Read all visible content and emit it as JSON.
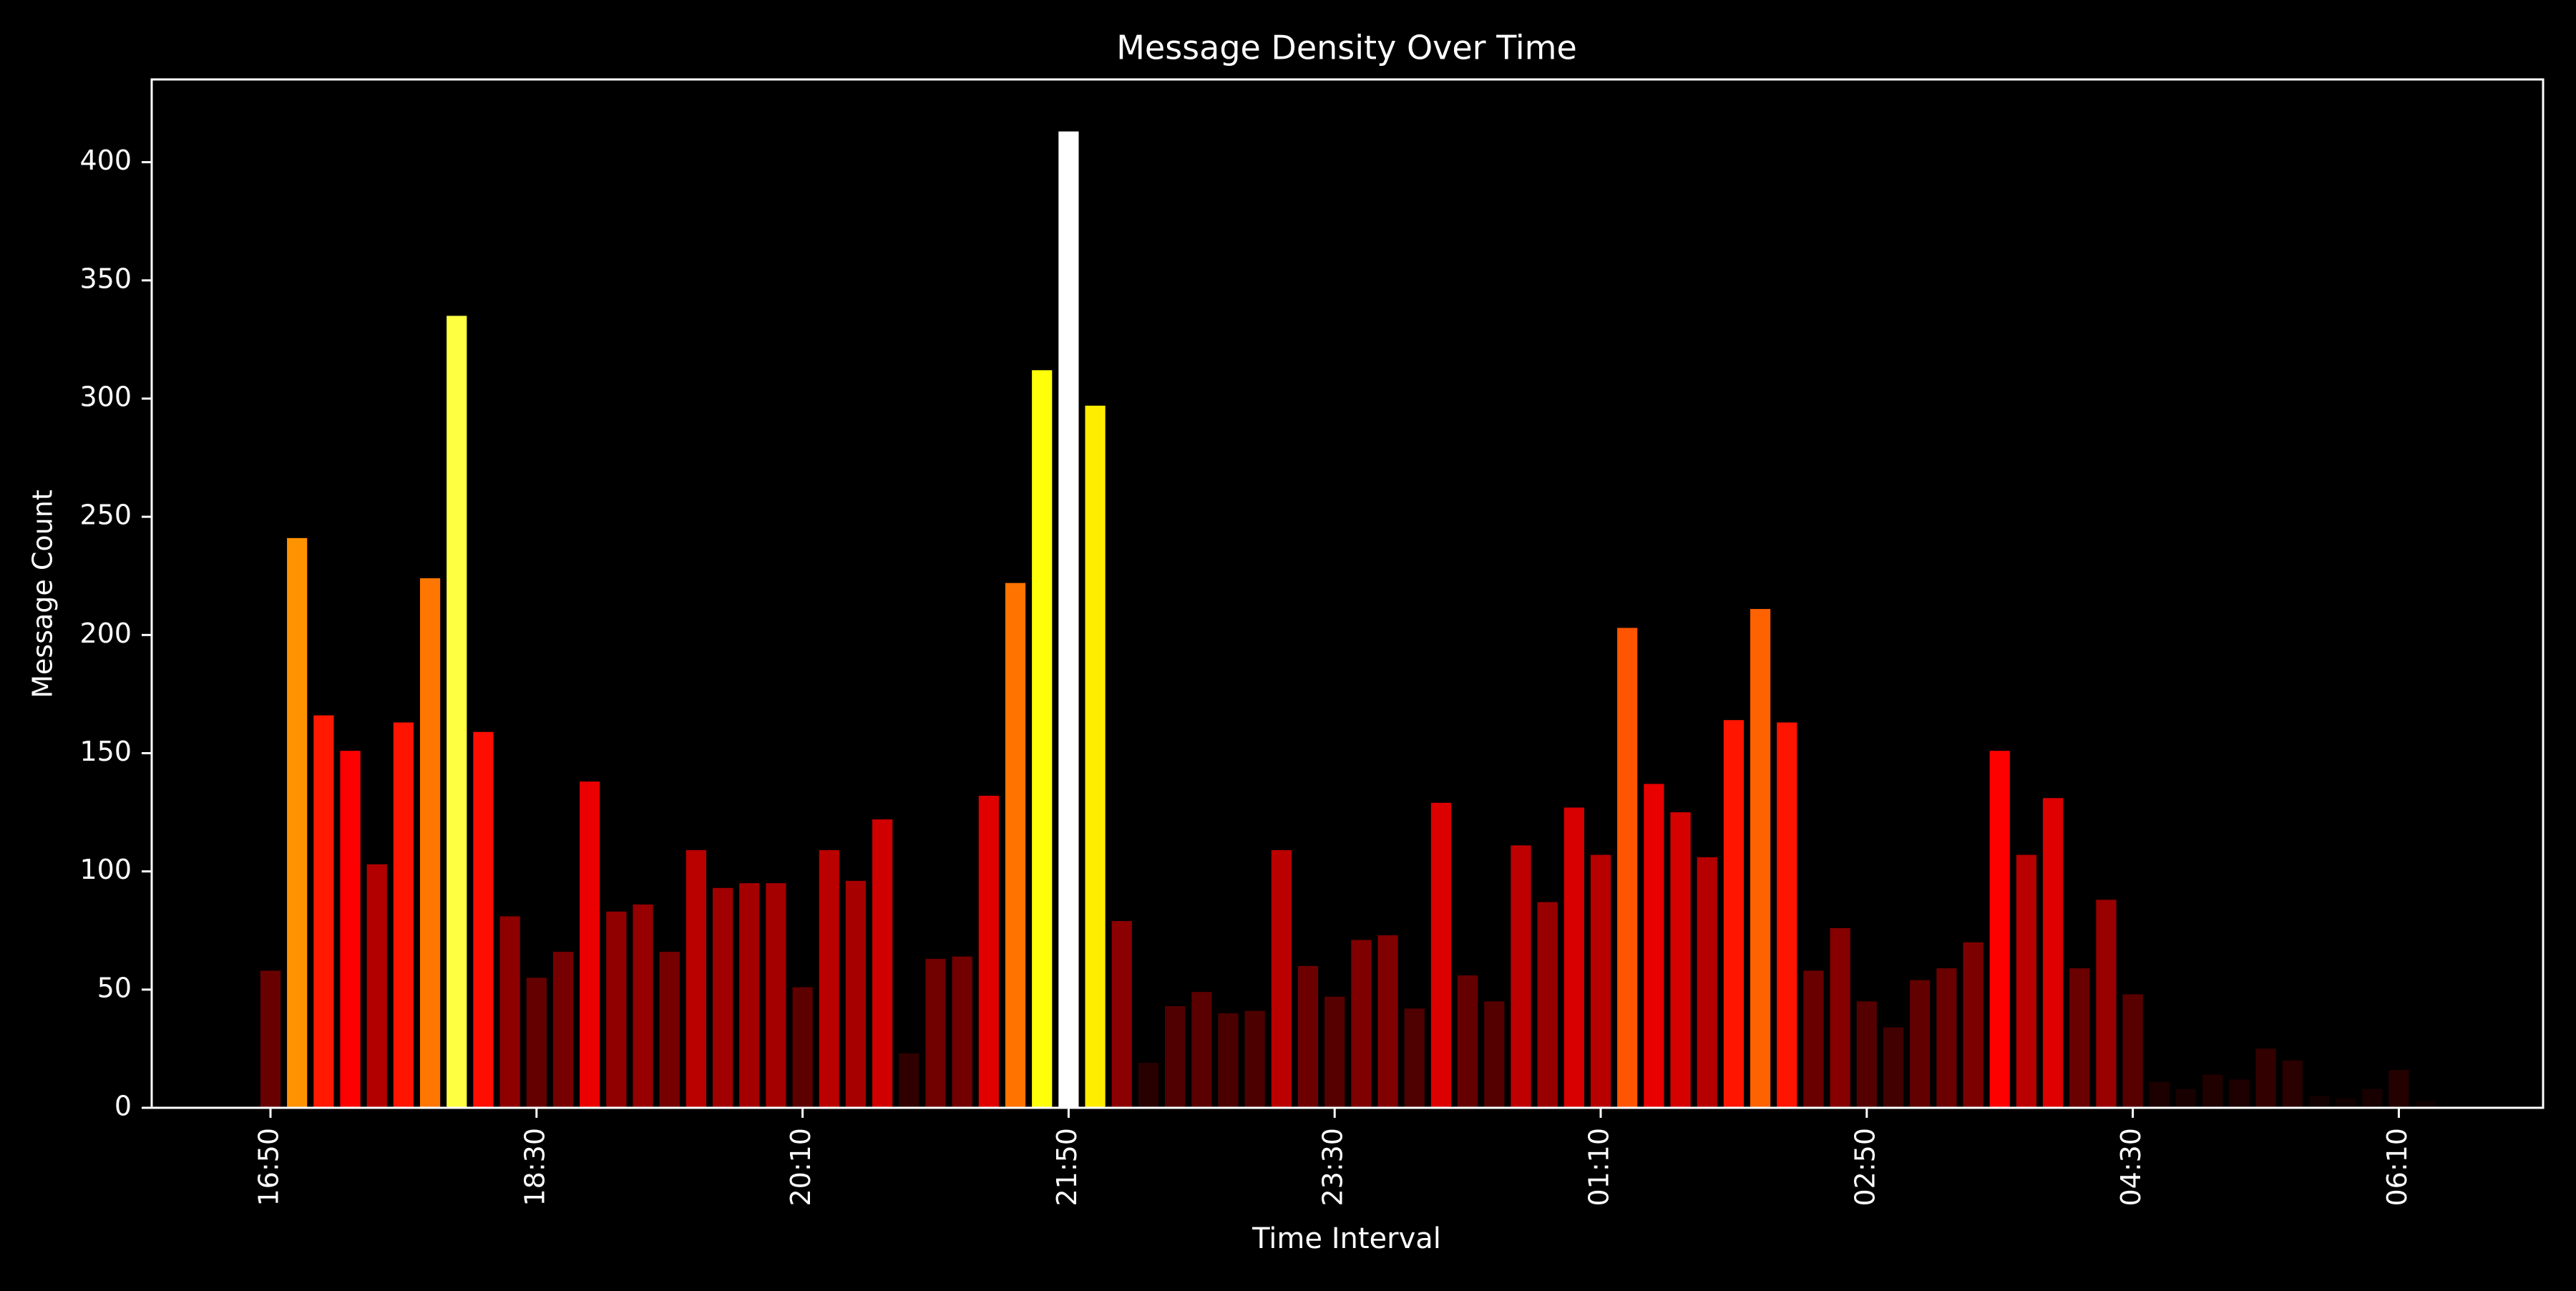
{
  "colors": {
    "background": "#000000",
    "foreground": "#ffffff",
    "colormap": "hot"
  },
  "chart_data": {
    "type": "bar",
    "title": "Message Density Over Time",
    "xlabel": "Time Interval",
    "ylabel": "Message Count",
    "ylim": [
      0,
      435
    ],
    "yticks": [
      0,
      50,
      100,
      150,
      200,
      250,
      300,
      350,
      400
    ],
    "grid": false,
    "legend": "none",
    "categories": [
      "16:50",
      "17:00",
      "17:10",
      "17:20",
      "17:30",
      "17:40",
      "17:50",
      "18:00",
      "18:10",
      "18:20",
      "18:30",
      "18:40",
      "18:50",
      "19:00",
      "19:10",
      "19:20",
      "19:30",
      "19:40",
      "19:50",
      "20:00",
      "20:10",
      "20:20",
      "20:30",
      "20:40",
      "20:50",
      "21:00",
      "21:10",
      "21:20",
      "21:30",
      "21:40",
      "21:50",
      "22:00",
      "22:10",
      "22:20",
      "22:30",
      "22:40",
      "22:50",
      "23:00",
      "23:10",
      "23:20",
      "23:30",
      "23:40",
      "23:50",
      "00:00",
      "00:10",
      "00:20",
      "00:30",
      "00:40",
      "00:50",
      "01:00",
      "01:10",
      "01:20",
      "01:30",
      "01:40",
      "01:50",
      "02:00",
      "02:10",
      "02:20",
      "02:30",
      "02:40",
      "02:50",
      "03:00",
      "03:10",
      "03:20",
      "03:30",
      "03:40",
      "03:50",
      "04:00",
      "04:10",
      "04:20",
      "04:30",
      "04:40",
      "04:50",
      "05:00",
      "05:10",
      "05:20",
      "05:30",
      "05:40",
      "05:50",
      "06:00",
      "06:10",
      "06:20"
    ],
    "xtick_labels": [
      "16:50",
      "18:30",
      "20:10",
      "21:50",
      "23:30",
      "01:10",
      "02:50",
      "04:30",
      "06:10"
    ],
    "values": [
      58,
      241,
      166,
      151,
      103,
      163,
      224,
      335,
      159,
      81,
      55,
      66,
      138,
      83,
      86,
      66,
      109,
      93,
      95,
      95,
      51,
      109,
      96,
      122,
      23,
      63,
      64,
      132,
      222,
      312,
      413,
      297,
      79,
      19,
      43,
      49,
      40,
      41,
      109,
      60,
      47,
      71,
      73,
      42,
      129,
      56,
      45,
      111,
      87,
      127,
      107,
      203,
      137,
      125,
      106,
      164,
      211,
      163,
      58,
      76,
      45,
      34,
      54,
      59,
      70,
      151,
      107,
      131,
      59,
      88,
      48,
      11,
      8,
      14,
      12,
      25,
      20,
      5,
      4,
      8,
      16,
      3
    ]
  }
}
